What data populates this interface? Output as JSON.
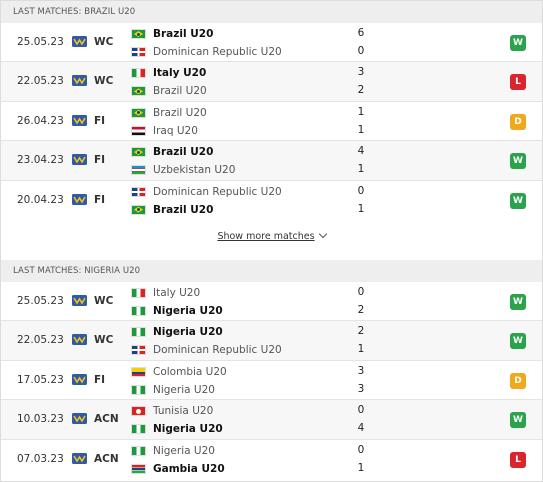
{
  "colors": {
    "win": "#2ba34a",
    "loss": "#d9252b",
    "draw": "#f0a81c"
  },
  "sections": [
    {
      "title": "LAST MATCHES: BRAZIL U20",
      "matches": [
        {
          "date": "25.05.23",
          "comp": "WC",
          "home": {
            "name": "Brazil U20",
            "flag": "brazil",
            "bold": true,
            "score": "6"
          },
          "away": {
            "name": "Dominican Republic U20",
            "flag": "dom",
            "bold": false,
            "score": "0"
          },
          "result": "W"
        },
        {
          "date": "22.05.23",
          "comp": "WC",
          "home": {
            "name": "Italy U20",
            "flag": "italy",
            "bold": true,
            "score": "3"
          },
          "away": {
            "name": "Brazil U20",
            "flag": "brazil",
            "bold": false,
            "score": "2"
          },
          "result": "L"
        },
        {
          "date": "26.04.23",
          "comp": "FI",
          "home": {
            "name": "Brazil U20",
            "flag": "brazil",
            "bold": false,
            "score": "1"
          },
          "away": {
            "name": "Iraq U20",
            "flag": "iraq",
            "bold": false,
            "score": "1"
          },
          "result": "D"
        },
        {
          "date": "23.04.23",
          "comp": "FI",
          "home": {
            "name": "Brazil U20",
            "flag": "brazil",
            "bold": true,
            "score": "4"
          },
          "away": {
            "name": "Uzbekistan U20",
            "flag": "uzb",
            "bold": false,
            "score": "1"
          },
          "result": "W"
        },
        {
          "date": "20.04.23",
          "comp": "FI",
          "home": {
            "name": "Dominican Republic U20",
            "flag": "dom",
            "bold": false,
            "score": "0"
          },
          "away": {
            "name": "Brazil U20",
            "flag": "brazil",
            "bold": true,
            "score": "1"
          },
          "result": "W"
        }
      ],
      "show_more": "Show more matches"
    },
    {
      "title": "LAST MATCHES: NIGERIA U20",
      "matches": [
        {
          "date": "25.05.23",
          "comp": "WC",
          "home": {
            "name": "Italy U20",
            "flag": "italy",
            "bold": false,
            "score": "0"
          },
          "away": {
            "name": "Nigeria U20",
            "flag": "nigeria",
            "bold": true,
            "score": "2"
          },
          "result": "W"
        },
        {
          "date": "22.05.23",
          "comp": "WC",
          "home": {
            "name": "Nigeria U20",
            "flag": "nigeria",
            "bold": true,
            "score": "2"
          },
          "away": {
            "name": "Dominican Republic U20",
            "flag": "dom",
            "bold": false,
            "score": "1"
          },
          "result": "W"
        },
        {
          "date": "17.05.23",
          "comp": "FI",
          "home": {
            "name": "Colombia U20",
            "flag": "colombia",
            "bold": false,
            "score": "3"
          },
          "away": {
            "name": "Nigeria U20",
            "flag": "nigeria",
            "bold": false,
            "score": "3"
          },
          "result": "D"
        },
        {
          "date": "10.03.23",
          "comp": "ACN",
          "home": {
            "name": "Tunisia U20",
            "flag": "tunisia",
            "bold": false,
            "score": "0"
          },
          "away": {
            "name": "Nigeria U20",
            "flag": "nigeria",
            "bold": true,
            "score": "4"
          },
          "result": "W"
        },
        {
          "date": "07.03.23",
          "comp": "ACN",
          "home": {
            "name": "Nigeria U20",
            "flag": "nigeria",
            "bold": false,
            "score": "0"
          },
          "away": {
            "name": "Gambia U20",
            "flag": "gambia",
            "bold": true,
            "score": "1"
          },
          "result": "L"
        }
      ]
    }
  ]
}
